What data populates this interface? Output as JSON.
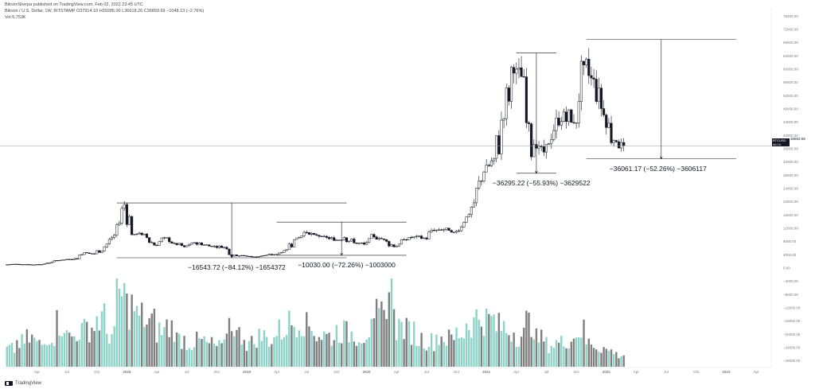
{
  "header": {
    "line1": "BitcoinSherpa published on TradingView.com, Feb 02, 2022 23:45 UTC",
    "line2": "Bitcoin / U.S. Dollar, 1W, BITSTAMP  O37914.10  H39285.00  L36618.26  C36893.69  −1048.13 (−2.76%)",
    "line3": "Vol  5.753K"
  },
  "price_label": {
    "box": "BTCUSD",
    "timer": "4d 1h",
    "value": "36893.69"
  },
  "brand": {
    "name": "TradingView",
    "icon": "tradingview-logo-icon"
  },
  "colors": {
    "up": "#ffffff",
    "down": "#131722",
    "vol_up": "#8ed2c8",
    "vol_down": "#7f7f7f",
    "grid": "#f0f3fa"
  },
  "chart_data": {
    "type": "candlestick",
    "symbol": "BTCUSD",
    "interval": "1W",
    "exchange": "BITSTAMP",
    "ylim": [
      -30000,
      78000
    ],
    "y_ticks": [
      "76000.00",
      "72000.00",
      "68000.00",
      "64000.00",
      "60000.00",
      "56000.00",
      "52000.00",
      "48000.00",
      "44000.00",
      "40000.00",
      "36000.00",
      "32000.00",
      "28000.00",
      "24000.00",
      "20000.00",
      "16000.00",
      "12000.00",
      "8000.00",
      "4000.00",
      "0.00",
      "−4000.00",
      "−8000.00",
      "−12000.00",
      "−16000.00",
      "−20000.00",
      "−24000.00",
      "−28000.00"
    ],
    "x_ticks": [
      "Apr",
      "Jul",
      "Oct",
      "2018",
      "Apr",
      "Jul",
      "Oct",
      "2019",
      "Apr",
      "Jul",
      "Oct",
      "2020",
      "Apr",
      "Jul",
      "Oct",
      "2021",
      "Apr",
      "Jul",
      "Oct",
      "2022",
      "Apr",
      "Jul",
      "Oct",
      "2023",
      "Apr"
    ],
    "x_tick_month_index": [
      3,
      6,
      9,
      12,
      15,
      18,
      21,
      24,
      27,
      30,
      33,
      36,
      39,
      42,
      45,
      48,
      51,
      54,
      57,
      60,
      63,
      66,
      69,
      72,
      75
    ],
    "last_close": 36893.69,
    "price_path_monthly": [
      [
        0,
        1000,
        1200
      ],
      [
        1,
        1200,
        1100
      ],
      [
        2,
        1100,
        1000
      ],
      [
        3,
        1000,
        1300
      ],
      [
        4,
        1300,
        2300
      ],
      [
        5,
        2300,
        2500
      ],
      [
        6,
        2500,
        2900
      ],
      [
        7,
        2900,
        4700
      ],
      [
        8,
        4700,
        4300
      ],
      [
        9,
        4300,
        6400
      ],
      [
        10,
        6400,
        9900
      ],
      [
        11,
        9900,
        19200
      ],
      [
        12,
        19200,
        10200
      ],
      [
        13,
        10200,
        10300
      ],
      [
        14,
        10300,
        6900
      ],
      [
        15,
        6900,
        9200
      ],
      [
        16,
        9200,
        7500
      ],
      [
        17,
        7500,
        6400
      ],
      [
        18,
        6400,
        7700
      ],
      [
        19,
        7700,
        7000
      ],
      [
        20,
        7000,
        6600
      ],
      [
        21,
        6600,
        6300
      ],
      [
        22,
        6300,
        4000
      ],
      [
        23,
        4000,
        3700
      ],
      [
        24,
        3700,
        3400
      ],
      [
        25,
        3400,
        3800
      ],
      [
        26,
        3800,
        4100
      ],
      [
        27,
        4100,
        5300
      ],
      [
        28,
        5300,
        8600
      ],
      [
        29,
        8600,
        10800
      ],
      [
        30,
        10800,
        10100
      ],
      [
        31,
        10100,
        9600
      ],
      [
        32,
        9600,
        8300
      ],
      [
        33,
        8300,
        9200
      ],
      [
        34,
        9200,
        7600
      ],
      [
        35,
        7600,
        7200
      ],
      [
        36,
        7200,
        9400
      ],
      [
        37,
        9400,
        8600
      ],
      [
        38,
        8600,
        6400
      ],
      [
        39,
        6400,
        8600
      ],
      [
        40,
        8600,
        9500
      ],
      [
        41,
        9500,
        9100
      ],
      [
        42,
        9100,
        11300
      ],
      [
        43,
        11300,
        11700
      ],
      [
        44,
        11700,
        10800
      ],
      [
        45,
        10800,
        13800
      ],
      [
        46,
        13800,
        19700
      ],
      [
        47,
        19700,
        29000
      ],
      [
        48,
        29000,
        33100
      ],
      [
        49,
        33100,
        45100
      ],
      [
        50,
        45100,
        58800
      ],
      [
        51,
        58800,
        57700
      ],
      [
        52,
        57700,
        37300
      ],
      [
        53,
        37300,
        35000
      ],
      [
        54,
        35000,
        41500
      ],
      [
        55,
        41500,
        47100
      ],
      [
        56,
        47100,
        43800
      ],
      [
        57,
        43800,
        61300
      ],
      [
        58,
        61300,
        57000
      ],
      [
        59,
        57000,
        46200
      ],
      [
        60,
        46200,
        38500
      ],
      [
        61,
        38500,
        36900
      ]
    ],
    "volume_relative": [
      0.22,
      0.3,
      0.35,
      0.28,
      0.4,
      0.55,
      0.38,
      0.45,
      0.5,
      0.6,
      0.42,
      0.9,
      0.75,
      0.62,
      0.55,
      0.45,
      0.5,
      0.35,
      0.3,
      0.32,
      0.28,
      0.25,
      0.55,
      0.4,
      0.3,
      0.38,
      0.35,
      0.45,
      0.55,
      0.6,
      0.5,
      0.4,
      0.38,
      0.45,
      0.42,
      0.4,
      0.45,
      0.62,
      0.95,
      0.5,
      0.45,
      0.35,
      0.32,
      0.38,
      0.35,
      0.42,
      0.55,
      0.62,
      0.58,
      0.5,
      0.45,
      0.4,
      0.55,
      0.35,
      0.28,
      0.3,
      0.35,
      0.45,
      0.3,
      0.25,
      0.2,
      0.15
    ],
    "annotations": [
      {
        "text": "−16543.72 (−84.12%) −1654372",
        "from": 19666,
        "to": 3122
      },
      {
        "text": "−10030.00 (−72.26%) −1003000",
        "from": 13880,
        "to": 3850
      },
      {
        "text": "−36295.22 (−55.93%) −3629522",
        "from": 64895,
        "to": 28600
      },
      {
        "text": "−36061.17 (−52.26%) −3606117",
        "from": 69000,
        "to": 32939
      }
    ],
    "annotation_month_ranges": [
      [
        11,
        34
      ],
      [
        27,
        40
      ],
      [
        51,
        55
      ],
      [
        58,
        73
      ]
    ]
  }
}
